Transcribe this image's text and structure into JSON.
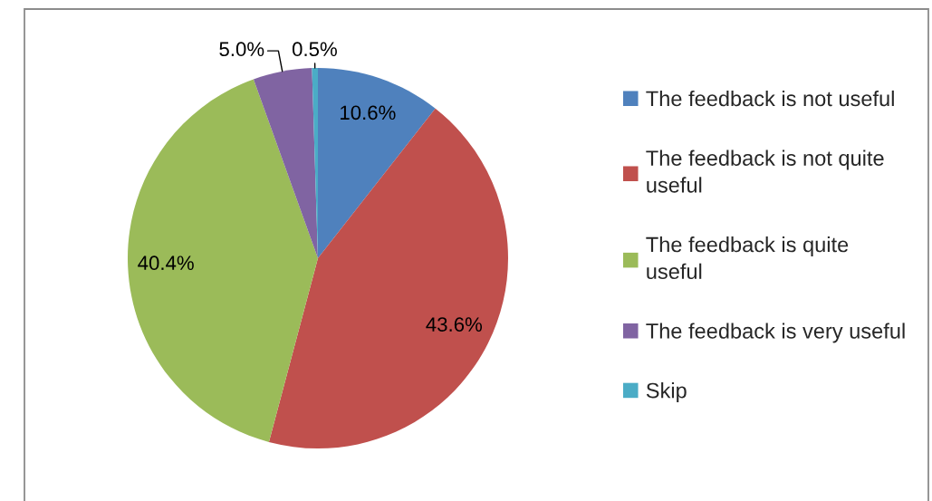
{
  "chart_data": {
    "type": "pie",
    "categories": [
      "The feedback is not useful",
      "The feedback is not quite useful",
      "The feedback is quite useful",
      "The feedback is very useful",
      "Skip"
    ],
    "values": [
      10.6,
      43.6,
      40.4,
      5.0,
      0.5
    ],
    "colors": [
      "#4f81bd",
      "#c0504d",
      "#9bbb59",
      "#8064a2",
      "#4bacc6"
    ],
    "value_labels": [
      "10.6%",
      "43.6%",
      "40.4%",
      "5.0%",
      "0.5%"
    ],
    "legend": "right"
  }
}
